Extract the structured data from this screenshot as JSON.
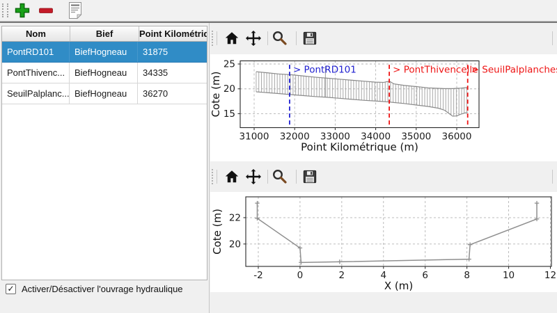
{
  "main_toolbar": {
    "buttons": [
      {
        "id": "add",
        "icon": "plus-icon"
      },
      {
        "id": "remove",
        "icon": "minus-icon"
      },
      {
        "id": "edit",
        "icon": "document-icon"
      }
    ]
  },
  "table": {
    "columns": [
      {
        "label": "Nom"
      },
      {
        "label": "Bief"
      },
      {
        "label": "Point Kilométrique"
      }
    ],
    "rows": [
      {
        "nom": "PontRD101",
        "bief": "BiefHogneau",
        "pk": "31875",
        "selected": true
      },
      {
        "nom": "PontThivenc...",
        "bief": "BiefHogneau",
        "pk": "34335",
        "selected": false
      },
      {
        "nom": "SeuilPalplanc...",
        "bief": "BiefHogneau",
        "pk": "36270",
        "selected": false
      }
    ],
    "selection_color": "#308cc6"
  },
  "checkbox": {
    "label": "Activer/Désactiver l'ouvrage hydraulique",
    "checked": true,
    "check_glyph": "✓"
  },
  "plot_toolbar": {
    "buttons": [
      {
        "id": "home",
        "icon": "home-icon"
      },
      {
        "id": "pan",
        "icon": "pan-icon"
      },
      {
        "id": "zoom",
        "icon": "magnifier-icon"
      },
      {
        "id": "save",
        "icon": "save-icon"
      }
    ]
  },
  "chart_data": [
    {
      "type": "profile",
      "title": "",
      "xlabel": "Point Kilométrique (m)",
      "ylabel": "Cote (m)",
      "xlim": [
        30656,
        36550
      ],
      "ylim": [
        12.2,
        25.63
      ],
      "xticks": [
        31000,
        32000,
        33000,
        34000,
        35000,
        36000
      ],
      "yticks": [
        15,
        20,
        25
      ],
      "grid": true,
      "series_color": "#a8a8a8",
      "outline_color": "#8a8a8a",
      "hatch_step": 65,
      "envelope": {
        "x": [
          31050,
          31300,
          31600,
          31900,
          32200,
          32500,
          32800,
          33100,
          33400,
          33700,
          34000,
          34200,
          34335,
          34450,
          34700,
          35000,
          35300,
          35550,
          35700,
          35800,
          35900,
          36000,
          36100,
          36270
        ],
        "bottom": [
          19.4,
          19.25,
          19.05,
          18.85,
          18.65,
          18.45,
          18.3,
          18.1,
          17.9,
          17.7,
          17.55,
          17.45,
          17.35,
          17.25,
          17.05,
          16.75,
          16.45,
          16.1,
          15.7,
          15.1,
          14.5,
          14.55,
          14.9,
          15.3
        ],
        "top": [
          23.45,
          23.25,
          23.0,
          22.85,
          22.6,
          22.35,
          22.15,
          21.95,
          21.75,
          21.55,
          21.35,
          21.3,
          21.55,
          21.0,
          20.7,
          20.45,
          20.2,
          20.1,
          20.05,
          20.05,
          20.05,
          20.1,
          20.15,
          20.3
        ]
      },
      "spike": {
        "x": 32760,
        "top": 24.6
      },
      "annotations": [
        {
          "label": "> PontRD101",
          "x": 31875,
          "color": "#2020d0"
        },
        {
          "label": "> PontThivencelle",
          "x": 34335,
          "color": "#ee1414"
        },
        {
          "label": "> SeuilPalplanches",
          "x": 36270,
          "color": "#ee1414"
        }
      ]
    },
    {
      "type": "line",
      "title": "",
      "xlabel": "X (m)",
      "ylabel": "Cote (m)",
      "xlim": [
        -2.6,
        12.05
      ],
      "ylim": [
        18.3,
        23.58
      ],
      "xticks": [
        -2,
        0,
        2,
        4,
        6,
        8,
        10,
        12
      ],
      "yticks": [
        20,
        22
      ],
      "grid": true,
      "series_color": "#8f8f8f",
      "points": [
        [
          -2.05,
          23.1
        ],
        [
          -2.05,
          21.95
        ],
        [
          0,
          19.7
        ],
        [
          0.05,
          18.6
        ],
        [
          1.9,
          18.65
        ],
        [
          8.1,
          18.85
        ],
        [
          8.15,
          19.95
        ],
        [
          11.35,
          21.9
        ],
        [
          11.35,
          23.1
        ]
      ]
    }
  ]
}
